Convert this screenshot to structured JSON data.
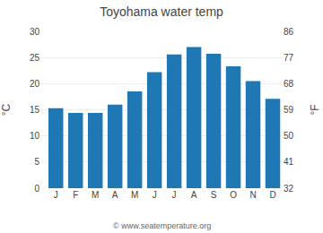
{
  "chart_data": {
    "type": "bar",
    "title": "Toyohama water temp",
    "categories": [
      "J",
      "F",
      "M",
      "A",
      "M",
      "J",
      "J",
      "A",
      "S",
      "O",
      "N",
      "D"
    ],
    "values": [
      15.3,
      14.4,
      14.4,
      16.0,
      18.5,
      22.2,
      25.6,
      27.0,
      25.7,
      23.3,
      20.5,
      17.1
    ],
    "ylim": [
      0,
      30
    ],
    "yticks": [
      0,
      5,
      10,
      15,
      20,
      25,
      30
    ],
    "y2lim": [
      32,
      86
    ],
    "y2ticks": [
      32,
      41,
      50,
      59,
      68,
      77,
      86
    ],
    "ylabel": "°C",
    "y2label": "°F",
    "grid": true,
    "annotations": [
      "© www.seatemperature.org"
    ]
  }
}
